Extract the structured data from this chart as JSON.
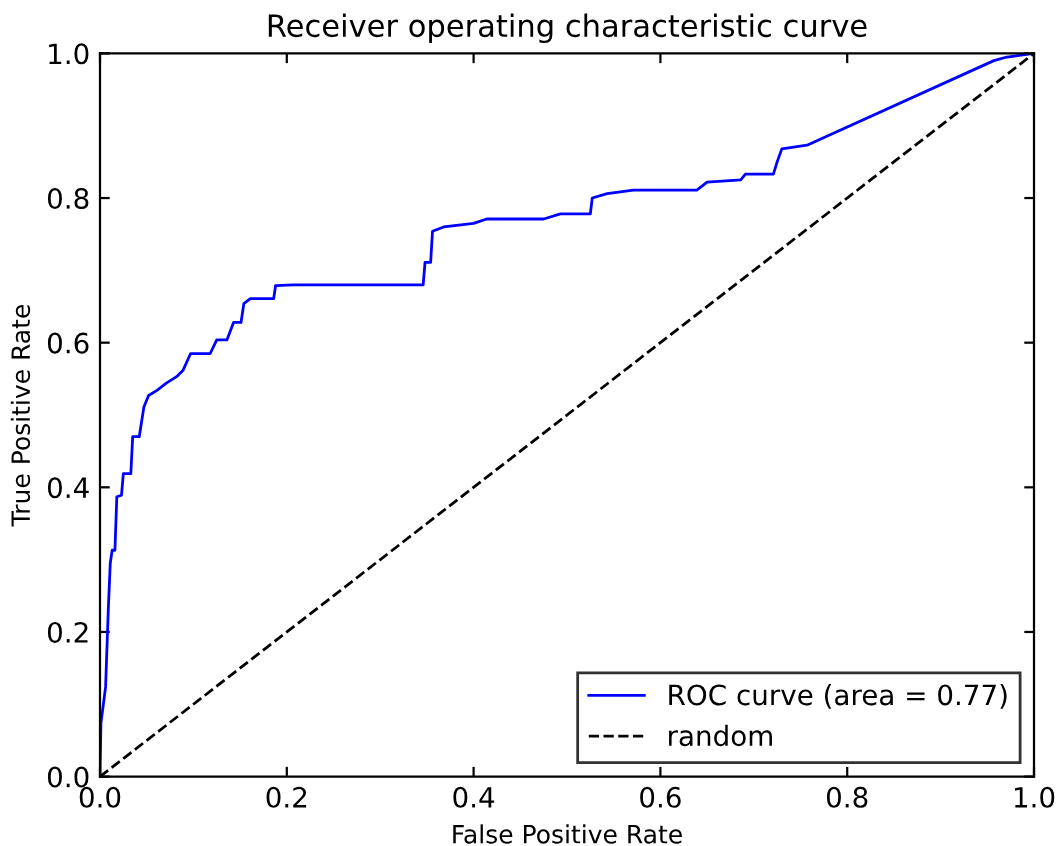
{
  "chart_data": {
    "type": "line",
    "title": "Receiver operating characteristic curve",
    "xlabel": "False Positive Rate",
    "ylabel": "True Positive Rate",
    "xlim": [
      0,
      1
    ],
    "ylim": [
      0,
      1
    ],
    "xticks": [
      {
        "value": 0,
        "label": "0.0"
      },
      0.2,
      0.4,
      0.6,
      0.8,
      {
        "value": 1,
        "label": "1.0"
      }
    ],
    "yticks": [
      {
        "value": 0,
        "label": "0.0"
      },
      0.2,
      0.4,
      0.6,
      0.8,
      {
        "value": 1,
        "label": "1.0"
      }
    ],
    "grid": false,
    "legend": "bottom right",
    "series": [
      {
        "name": "ROC curve (area = 0.77)",
        "color": "#0000ff",
        "line_style": "solid",
        "x": [
          0,
          0.001,
          0.006,
          0.009,
          0.011,
          0.013,
          0.016,
          0.018,
          0.023,
          0.025,
          0.033,
          0.035,
          0.042,
          0.047,
          0.052,
          0.061,
          0.071,
          0.082,
          0.089,
          0.097,
          0.118,
          0.125,
          0.136,
          0.143,
          0.151,
          0.154,
          0.161,
          0.186,
          0.188,
          0.207,
          0.346,
          0.348,
          0.354,
          0.356,
          0.368,
          0.4,
          0.414,
          0.475,
          0.493,
          0.525,
          0.527,
          0.543,
          0.571,
          0.639,
          0.65,
          0.686,
          0.691,
          0.721,
          0.725,
          0.73,
          0.757,
          0.957,
          0.971,
          1
        ],
        "values": [
          0,
          0.074,
          0.124,
          0.235,
          0.295,
          0.313,
          0.313,
          0.387,
          0.389,
          0.419,
          0.419,
          0.47,
          0.47,
          0.511,
          0.527,
          0.534,
          0.544,
          0.553,
          0.562,
          0.585,
          0.585,
          0.604,
          0.604,
          0.628,
          0.628,
          0.654,
          0.661,
          0.661,
          0.679,
          0.68,
          0.68,
          0.711,
          0.711,
          0.754,
          0.76,
          0.765,
          0.771,
          0.771,
          0.778,
          0.778,
          0.8,
          0.806,
          0.811,
          0.811,
          0.822,
          0.825,
          0.833,
          0.833,
          0.85,
          0.868,
          0.873,
          0.99,
          0.995,
          1
        ]
      },
      {
        "name": "random",
        "color": "#000000",
        "line_style": "dashed",
        "x": [
          0,
          1
        ],
        "values": [
          0,
          1
        ]
      }
    ]
  }
}
